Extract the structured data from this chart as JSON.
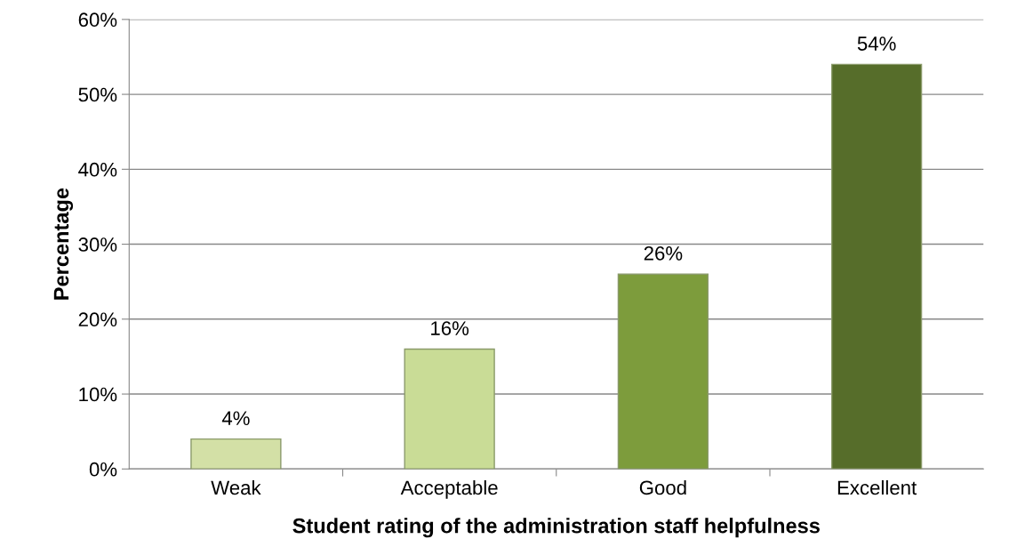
{
  "chart_data": {
    "type": "bar",
    "xlabel": "Student rating of the administration staff helpfulness",
    "ylabel": "Percentage",
    "categories": [
      "Weak",
      "Acceptable",
      "Good",
      "Excellent"
    ],
    "values": [
      4,
      16,
      26,
      54
    ],
    "colors": [
      "#d3e0a6",
      "#c9dc96",
      "#7d9c3c",
      "#566d2a"
    ],
    "value_labels": [
      "4%",
      "16%",
      "26%",
      "54%"
    ],
    "ylim": [
      0,
      60
    ],
    "yticks": [
      {
        "value": 0,
        "label": "0%"
      },
      {
        "value": 10,
        "label": "10%"
      },
      {
        "value": 20,
        "label": "20%"
      },
      {
        "value": 30,
        "label": "30%"
      },
      {
        "value": 40,
        "label": "40%"
      },
      {
        "value": 50,
        "label": "50%"
      },
      {
        "value": 60,
        "label": "60%"
      }
    ],
    "grid": "y",
    "legend": false
  }
}
